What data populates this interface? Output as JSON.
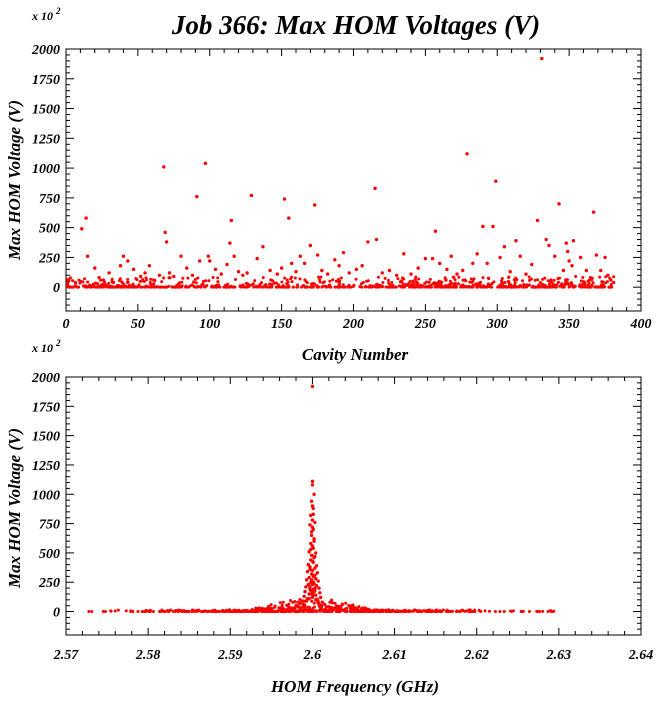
{
  "title": "Job 366: Max HOM Voltages (V)",
  "chart_data": [
    {
      "type": "scatter",
      "xlabel": "Cavity Number",
      "ylabel": "Max HOM Voltage (V)",
      "y_multiplier": "x 10",
      "y_multiplier_exp": "2",
      "xlim": [
        0,
        400
      ],
      "ylim": [
        -200,
        2000
      ],
      "xticks": [
        0,
        50,
        100,
        150,
        200,
        250,
        300,
        350,
        400
      ],
      "yticks": [
        0,
        250,
        500,
        750,
        1000,
        1250,
        1500,
        1750,
        2000
      ],
      "marker_color": "#ff0000",
      "grid": false,
      "points": [
        [
          11,
          490
        ],
        [
          14,
          580
        ],
        [
          15,
          260
        ],
        [
          20,
          160
        ],
        [
          23,
          80
        ],
        [
          26,
          60
        ],
        [
          30,
          120
        ],
        [
          33,
          40
        ],
        [
          38,
          180
        ],
        [
          40,
          260
        ],
        [
          43,
          220
        ],
        [
          47,
          150
        ],
        [
          52,
          90
        ],
        [
          55,
          120
        ],
        [
          58,
          180
        ],
        [
          61,
          60
        ],
        [
          65,
          100
        ],
        [
          68,
          1010
        ],
        [
          69,
          460
        ],
        [
          70,
          380
        ],
        [
          72,
          120
        ],
        [
          75,
          90
        ],
        [
          80,
          260
        ],
        [
          84,
          160
        ],
        [
          88,
          100
        ],
        [
          91,
          760
        ],
        [
          93,
          220
        ],
        [
          97,
          1040
        ],
        [
          99,
          260
        ],
        [
          100,
          220
        ],
        [
          104,
          150
        ],
        [
          108,
          110
        ],
        [
          112,
          190
        ],
        [
          114,
          370
        ],
        [
          115,
          560
        ],
        [
          117,
          260
        ],
        [
          120,
          130
        ],
        [
          123,
          100
        ],
        [
          126,
          120
        ],
        [
          129,
          770
        ],
        [
          133,
          240
        ],
        [
          137,
          340
        ],
        [
          142,
          140
        ],
        [
          147,
          110
        ],
        [
          150,
          160
        ],
        [
          152,
          740
        ],
        [
          155,
          580
        ],
        [
          157,
          200
        ],
        [
          160,
          130
        ],
        [
          163,
          260
        ],
        [
          166,
          200
        ],
        [
          170,
          350
        ],
        [
          173,
          690
        ],
        [
          175,
          270
        ],
        [
          178,
          140
        ],
        [
          182,
          110
        ],
        [
          187,
          230
        ],
        [
          190,
          180
        ],
        [
          193,
          290
        ],
        [
          197,
          120
        ],
        [
          202,
          150
        ],
        [
          206,
          180
        ],
        [
          210,
          380
        ],
        [
          215,
          830
        ],
        [
          216,
          400
        ],
        [
          220,
          120
        ],
        [
          225,
          140
        ],
        [
          230,
          100
        ],
        [
          235,
          280
        ],
        [
          240,
          110
        ],
        [
          245,
          160
        ],
        [
          250,
          240
        ],
        [
          255,
          240
        ],
        [
          257,
          470
        ],
        [
          260,
          200
        ],
        [
          265,
          150
        ],
        [
          268,
          260
        ],
        [
          272,
          110
        ],
        [
          276,
          140
        ],
        [
          279,
          1120
        ],
        [
          283,
          200
        ],
        [
          286,
          280
        ],
        [
          290,
          510
        ],
        [
          293,
          200
        ],
        [
          297,
          510
        ],
        [
          299,
          890
        ],
        [
          302,
          250
        ],
        [
          305,
          340
        ],
        [
          309,
          130
        ],
        [
          313,
          390
        ],
        [
          316,
          260
        ],
        [
          320,
          110
        ],
        [
          324,
          190
        ],
        [
          328,
          560
        ],
        [
          331,
          1920
        ],
        [
          334,
          400
        ],
        [
          336,
          350
        ],
        [
          340,
          260
        ],
        [
          343,
          700
        ],
        [
          346,
          140
        ],
        [
          348,
          370
        ],
        [
          349,
          300
        ],
        [
          350,
          220
        ],
        [
          352,
          180
        ],
        [
          353,
          390
        ],
        [
          358,
          250
        ],
        [
          362,
          140
        ],
        [
          367,
          630
        ],
        [
          369,
          270
        ],
        [
          372,
          140
        ],
        [
          375,
          250
        ],
        [
          377,
          100
        ],
        [
          379,
          60
        ],
        [
          381,
          40
        ]
      ]
    },
    {
      "type": "scatter",
      "xlabel": "HOM Frequency (GHz)",
      "ylabel": "Max HOM Voltage (V)",
      "y_multiplier": "x 10",
      "y_multiplier_exp": "2",
      "xlim": [
        2.57,
        2.64
      ],
      "ylim": [
        -200,
        2000
      ],
      "xticks": [
        2.57,
        2.58,
        2.59,
        2.6,
        2.61,
        2.62,
        2.63,
        2.64
      ],
      "yticks": [
        0,
        250,
        500,
        750,
        1000,
        1250,
        1500,
        1750,
        2000
      ],
      "marker_color": "#ff0000",
      "grid": false,
      "points": [
        [
          2.6,
          1920
        ],
        [
          2.6,
          1110
        ],
        [
          2.6,
          1080
        ],
        [
          2.6002,
          1000
        ],
        [
          2.5999,
          940
        ],
        [
          2.6001,
          880
        ],
        [
          2.5998,
          820
        ],
        [
          2.6,
          780
        ],
        [
          2.6003,
          760
        ],
        [
          2.5997,
          740
        ],
        [
          2.6001,
          700
        ],
        [
          2.5999,
          650
        ],
        [
          2.6002,
          620
        ],
        [
          2.5998,
          580
        ],
        [
          2.6,
          560
        ],
        [
          2.6001,
          540
        ],
        [
          2.5996,
          510
        ],
        [
          2.6004,
          500
        ],
        [
          2.5999,
          480
        ],
        [
          2.6002,
          460
        ],
        [
          2.5998,
          440
        ],
        [
          2.6001,
          420
        ],
        [
          2.5995,
          400
        ],
        [
          2.6005,
          390
        ],
        [
          2.5997,
          380
        ],
        [
          2.6003,
          370
        ],
        [
          2.6,
          350
        ],
        [
          2.5994,
          340
        ],
        [
          2.6006,
          330
        ],
        [
          2.5999,
          320
        ],
        [
          2.6001,
          300
        ],
        [
          2.5996,
          290
        ],
        [
          2.6004,
          280
        ],
        [
          2.5993,
          270
        ],
        [
          2.6007,
          260
        ],
        [
          2.5998,
          250
        ],
        [
          2.6002,
          240
        ],
        [
          2.5995,
          230
        ],
        [
          2.6005,
          220
        ],
        [
          2.5992,
          210
        ],
        [
          2.6008,
          200
        ],
        [
          2.5997,
          190
        ],
        [
          2.6003,
          180
        ],
        [
          2.5991,
          170
        ],
        [
          2.6009,
          160
        ],
        [
          2.5996,
          150
        ],
        [
          2.6004,
          140
        ],
        [
          2.599,
          130
        ],
        [
          2.601,
          120
        ],
        [
          2.5994,
          110
        ],
        [
          2.6006,
          100
        ],
        [
          2.5988,
          90
        ],
        [
          2.6012,
          80
        ],
        [
          2.5985,
          70
        ],
        [
          2.6015,
          60
        ],
        [
          2.598,
          50
        ],
        [
          2.602,
          40
        ],
        [
          2.5975,
          30
        ],
        [
          2.6025,
          30
        ],
        [
          2.597,
          20
        ],
        [
          2.603,
          20
        ],
        [
          2.596,
          20
        ],
        [
          2.604,
          20
        ],
        [
          2.595,
          10
        ],
        [
          2.605,
          10
        ],
        [
          2.594,
          10
        ],
        [
          2.606,
          10
        ],
        [
          2.5999,
          270
        ],
        [
          2.6001,
          250
        ],
        [
          2.6,
          230
        ],
        [
          2.5997,
          210
        ],
        [
          2.6003,
          200
        ],
        [
          2.5998,
          180
        ],
        [
          2.6002,
          170
        ],
        [
          2.5999,
          150
        ],
        [
          2.6001,
          140
        ],
        [
          2.6,
          120
        ],
        [
          2.5996,
          110
        ],
        [
          2.6004,
          100
        ],
        [
          2.5993,
          90
        ],
        [
          2.6007,
          80
        ],
        [
          2.5989,
          60
        ],
        [
          2.6011,
          50
        ],
        [
          2.5983,
          40
        ],
        [
          2.6017,
          40
        ],
        [
          2.5978,
          30
        ],
        [
          2.6022,
          30
        ],
        [
          2.6,
          900
        ],
        [
          2.6001,
          830
        ],
        [
          2.6,
          720
        ],
        [
          2.5999,
          680
        ],
        [
          2.6002,
          600
        ],
        [
          2.5998,
          530
        ],
        [
          2.6003,
          470
        ],
        [
          2.6,
          430
        ],
        [
          2.5997,
          360
        ],
        [
          2.6003,
          310
        ],
        [
          2.5999,
          260
        ],
        [
          2.6001,
          190
        ],
        [
          2.6,
          160
        ]
      ]
    }
  ]
}
